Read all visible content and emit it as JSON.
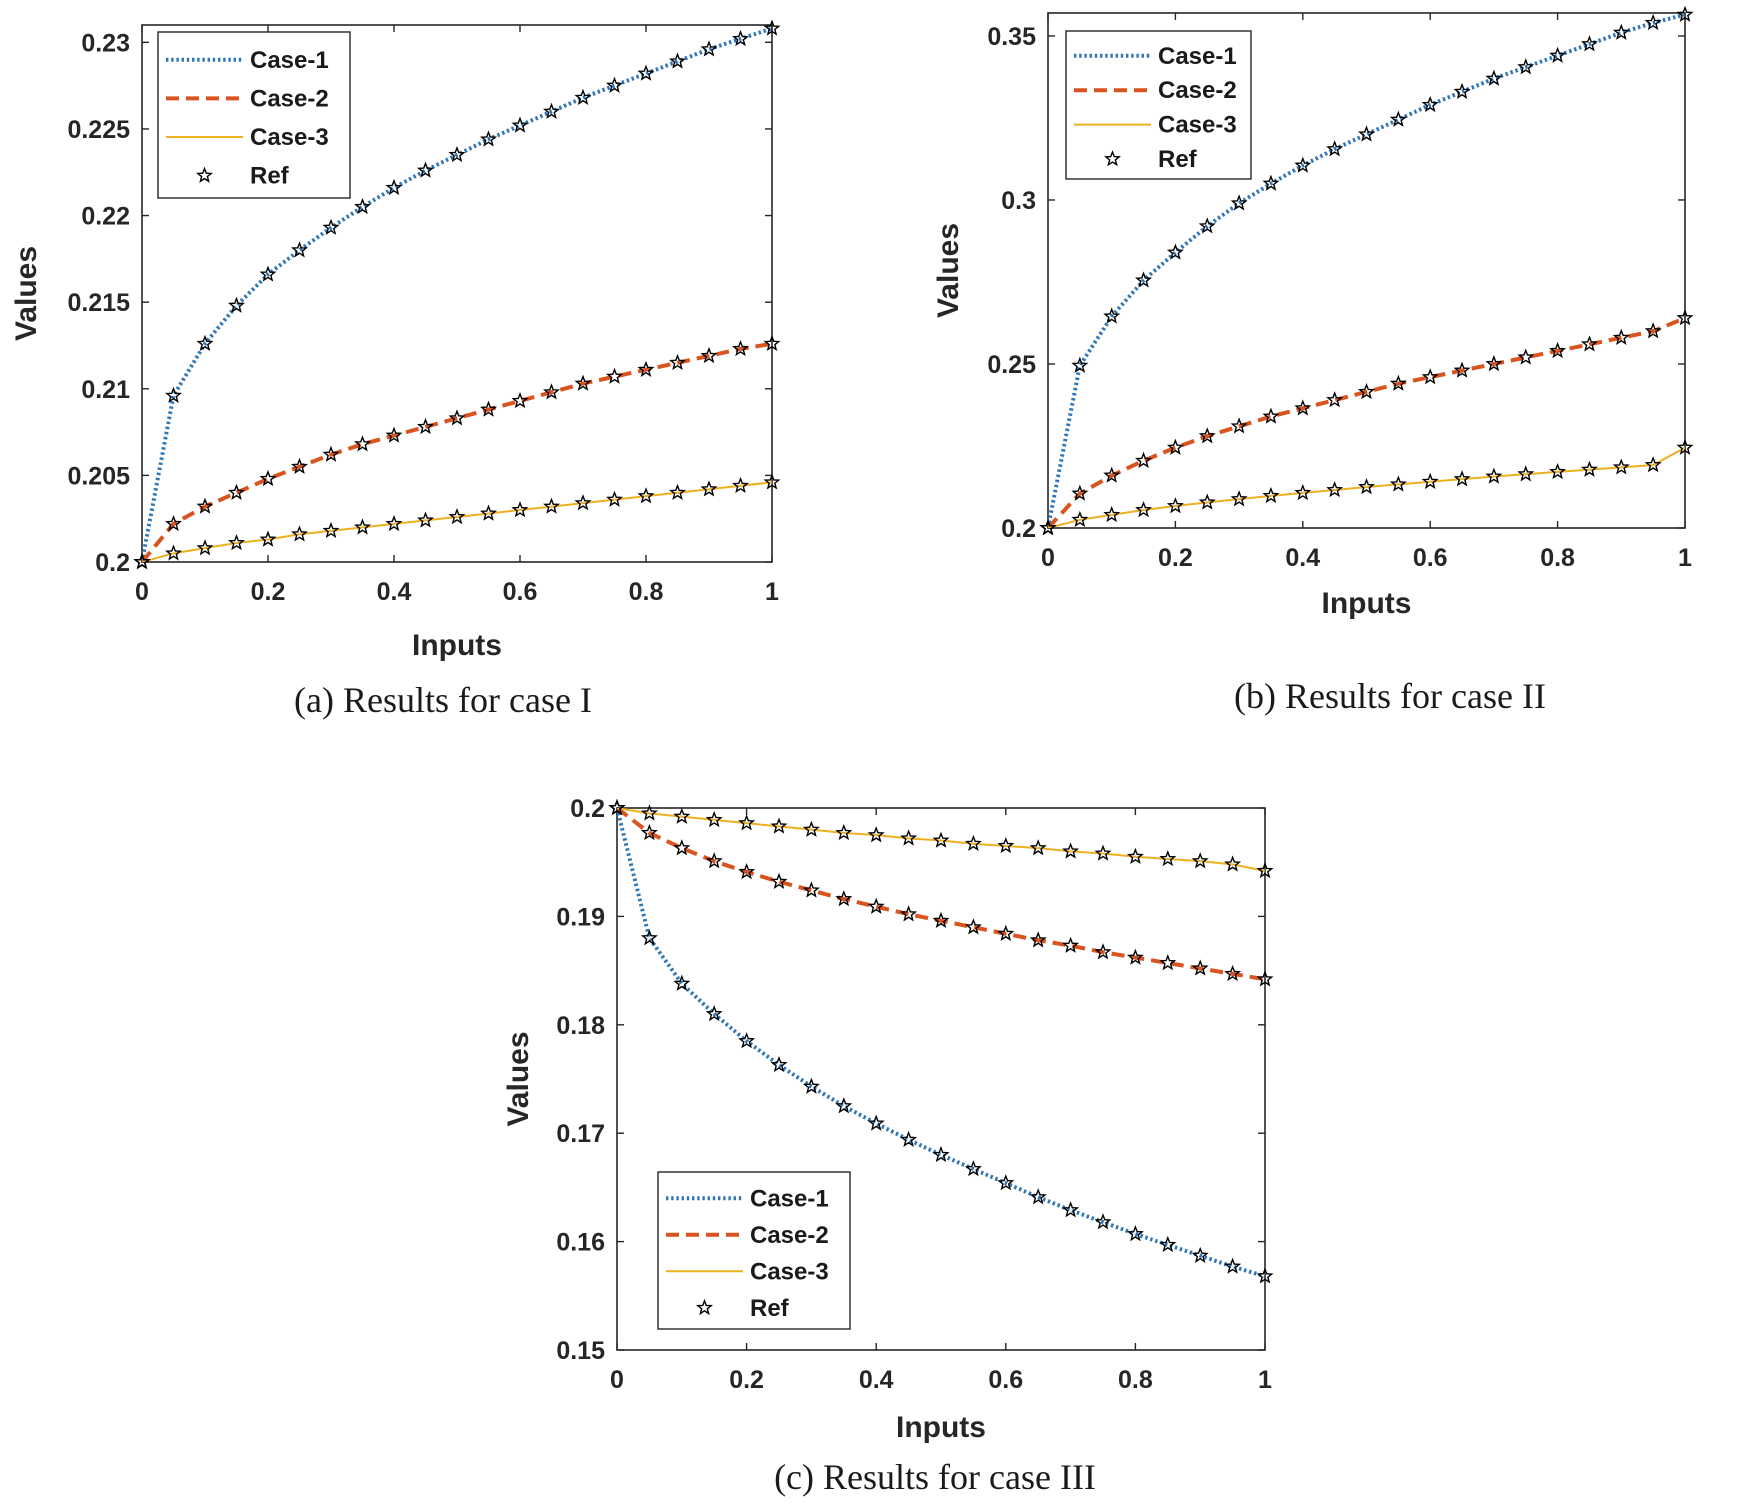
{
  "chart_data": [
    {
      "type": "line",
      "caption": "(a) Results for case I",
      "xlabel": "Inputs",
      "ylabel": "Values",
      "xlim": [
        0,
        1
      ],
      "ylim": [
        0.2,
        0.231
      ],
      "xticks": [
        "0",
        "0.2",
        "0.4",
        "0.6",
        "0.8",
        "1"
      ],
      "yticks": [
        "0.2",
        "0.205",
        "0.21",
        "0.215",
        "0.22",
        "0.225",
        "0.23"
      ],
      "legend_position": "top-left",
      "x": [
        0,
        0.05,
        0.1,
        0.15,
        0.2,
        0.25,
        0.3,
        0.35,
        0.4,
        0.45,
        0.5,
        0.55,
        0.6,
        0.65,
        0.7,
        0.75,
        0.8,
        0.85,
        0.9,
        0.95,
        1
      ],
      "series": [
        {
          "name": "Case-1",
          "style": "dotted",
          "color": "#2e75b6",
          "values": [
            0.2,
            0.2096,
            0.2126,
            0.2148,
            0.2166,
            0.218,
            0.2193,
            0.2205,
            0.2216,
            0.2226,
            0.2235,
            0.2244,
            0.2252,
            0.226,
            0.2268,
            0.2275,
            0.2282,
            0.2289,
            0.2296,
            0.2302,
            0.2308
          ]
        },
        {
          "name": "Case-2",
          "style": "dashed",
          "color": "#d9541e",
          "values": [
            0.2,
            0.2022,
            0.2032,
            0.204,
            0.2048,
            0.2055,
            0.2062,
            0.2068,
            0.2073,
            0.2078,
            0.2083,
            0.2088,
            0.2093,
            0.2098,
            0.2103,
            0.2107,
            0.2111,
            0.2115,
            0.2119,
            0.2123,
            0.2126
          ]
        },
        {
          "name": "Case-3",
          "style": "solid",
          "color": "#edb120",
          "values": [
            0.2,
            0.2005,
            0.2008,
            0.2011,
            0.2013,
            0.2016,
            0.2018,
            0.202,
            0.2022,
            0.2024,
            0.2026,
            0.2028,
            0.203,
            0.2032,
            0.2034,
            0.2036,
            0.2038,
            0.204,
            0.2042,
            0.2044,
            0.2046
          ]
        }
      ],
      "ref": {
        "name": "Ref",
        "marker": "star",
        "color": "#000000",
        "follows_series": true
      }
    },
    {
      "type": "line",
      "caption": "(b) Results for case II",
      "xlabel": "Inputs",
      "ylabel": "Values",
      "xlim": [
        0,
        1
      ],
      "ylim": [
        0.2,
        0.357
      ],
      "xticks": [
        "0",
        "0.2",
        "0.4",
        "0.6",
        "0.8",
        "1"
      ],
      "yticks": [
        "0.2",
        "0.25",
        "0.3",
        "0.35"
      ],
      "legend_position": "top-left",
      "x": [
        0,
        0.05,
        0.1,
        0.15,
        0.2,
        0.25,
        0.3,
        0.35,
        0.4,
        0.45,
        0.5,
        0.55,
        0.6,
        0.65,
        0.7,
        0.75,
        0.8,
        0.85,
        0.9,
        0.95,
        1
      ],
      "series": [
        {
          "name": "Case-1",
          "style": "dotted",
          "color": "#2e75b6",
          "values": [
            0.2,
            0.2495,
            0.2645,
            0.2755,
            0.284,
            0.292,
            0.299,
            0.305,
            0.3105,
            0.3155,
            0.32,
            0.3245,
            0.329,
            0.333,
            0.337,
            0.3405,
            0.344,
            0.3475,
            0.351,
            0.354,
            0.3565
          ]
        },
        {
          "name": "Case-2",
          "style": "dashed",
          "color": "#d9541e",
          "values": [
            0.2,
            0.2105,
            0.216,
            0.2205,
            0.2245,
            0.228,
            0.231,
            0.234,
            0.2365,
            0.239,
            0.2415,
            0.244,
            0.246,
            0.248,
            0.25,
            0.252,
            0.254,
            0.256,
            0.258,
            0.26,
            0.264
          ]
        },
        {
          "name": "Case-3",
          "style": "solid",
          "color": "#edb120",
          "values": [
            0.2,
            0.2025,
            0.204,
            0.2055,
            0.2067,
            0.2078,
            0.2088,
            0.2098,
            0.2107,
            0.2116,
            0.2125,
            0.2133,
            0.2141,
            0.2149,
            0.2157,
            0.2164,
            0.2171,
            0.2178,
            0.2185,
            0.2192,
            0.2245
          ]
        }
      ],
      "ref": {
        "name": "Ref",
        "marker": "star",
        "color": "#000000",
        "follows_series": true
      }
    },
    {
      "type": "line",
      "caption": "(c) Results for case III",
      "xlabel": "Inputs",
      "ylabel": "Values",
      "xlim": [
        0,
        1
      ],
      "ylim": [
        0.15,
        0.2
      ],
      "xticks": [
        "0",
        "0.2",
        "0.4",
        "0.6",
        "0.8",
        "1"
      ],
      "yticks": [
        "0.15",
        "0.16",
        "0.17",
        "0.18",
        "0.19",
        "0.2"
      ],
      "legend_position": "bottom-left",
      "x": [
        0,
        0.05,
        0.1,
        0.15,
        0.2,
        0.25,
        0.3,
        0.35,
        0.4,
        0.45,
        0.5,
        0.55,
        0.6,
        0.65,
        0.7,
        0.75,
        0.8,
        0.85,
        0.9,
        0.95,
        1
      ],
      "series": [
        {
          "name": "Case-1",
          "style": "dotted",
          "color": "#2e75b6",
          "values": [
            0.2,
            0.188,
            0.1838,
            0.181,
            0.1785,
            0.1763,
            0.1743,
            0.1725,
            0.1709,
            0.1694,
            0.168,
            0.1667,
            0.1654,
            0.1641,
            0.1629,
            0.1618,
            0.1607,
            0.1597,
            0.1587,
            0.1577,
            0.1568
          ]
        },
        {
          "name": "Case-2",
          "style": "dashed",
          "color": "#d9541e",
          "values": [
            0.2,
            0.1977,
            0.1963,
            0.1951,
            0.1941,
            0.1932,
            0.1924,
            0.1916,
            0.1909,
            0.1902,
            0.1896,
            0.189,
            0.1884,
            0.1878,
            0.1873,
            0.1867,
            0.1862,
            0.1857,
            0.1852,
            0.1847,
            0.1842
          ]
        },
        {
          "name": "Case-3",
          "style": "solid",
          "color": "#edb120",
          "values": [
            0.2,
            0.1995,
            0.1992,
            0.1989,
            0.1986,
            0.1983,
            0.198,
            0.1977,
            0.1975,
            0.1972,
            0.197,
            0.1967,
            0.1965,
            0.1963,
            0.196,
            0.1958,
            0.1955,
            0.1953,
            0.1951,
            0.1948,
            0.1942
          ]
        }
      ],
      "ref": {
        "name": "Ref",
        "marker": "star",
        "color": "#000000",
        "follows_series": true
      }
    }
  ]
}
